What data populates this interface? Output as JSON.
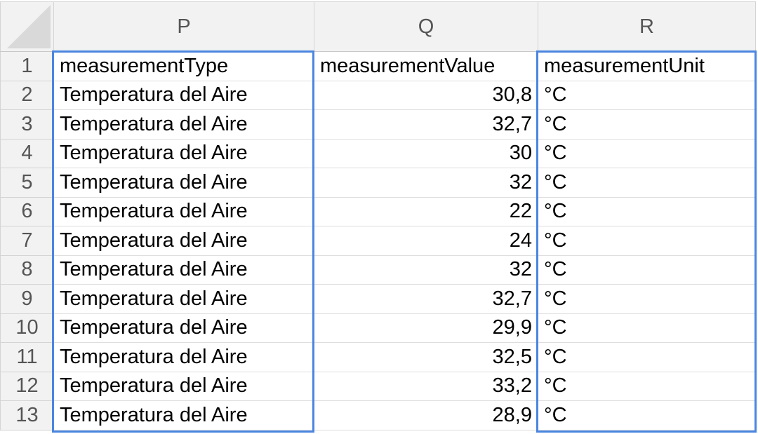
{
  "columns": [
    "P",
    "Q",
    "R"
  ],
  "header_row": {
    "row_number": "1",
    "cells": [
      "measurementType",
      "measurementValue",
      "measurementUnit"
    ]
  },
  "rows": [
    {
      "row_number": "2",
      "type": "Temperatura del Aire",
      "value": "30,8",
      "unit": "°C"
    },
    {
      "row_number": "3",
      "type": "Temperatura del Aire",
      "value": "32,7",
      "unit": "°C"
    },
    {
      "row_number": "4",
      "type": "Temperatura del Aire",
      "value": "30",
      "unit": "°C"
    },
    {
      "row_number": "5",
      "type": "Temperatura del Aire",
      "value": "32",
      "unit": "°C"
    },
    {
      "row_number": "6",
      "type": "Temperatura del Aire",
      "value": "22",
      "unit": "°C"
    },
    {
      "row_number": "7",
      "type": "Temperatura del Aire",
      "value": "24",
      "unit": "°C"
    },
    {
      "row_number": "8",
      "type": "Temperatura del Aire",
      "value": "32",
      "unit": "°C"
    },
    {
      "row_number": "9",
      "type": "Temperatura del Aire",
      "value": "32,7",
      "unit": "°C"
    },
    {
      "row_number": "10",
      "type": "Temperatura del Aire",
      "value": "29,9",
      "unit": "°C"
    },
    {
      "row_number": "11",
      "type": "Temperatura del Aire",
      "value": "32,5",
      "unit": "°C"
    },
    {
      "row_number": "12",
      "type": "Temperatura del Aire",
      "value": "33,2",
      "unit": "°C"
    },
    {
      "row_number": "13",
      "type": "Temperatura del Aire",
      "value": "28,9",
      "unit": "°C"
    }
  ],
  "selection_color": "#4a86e0"
}
